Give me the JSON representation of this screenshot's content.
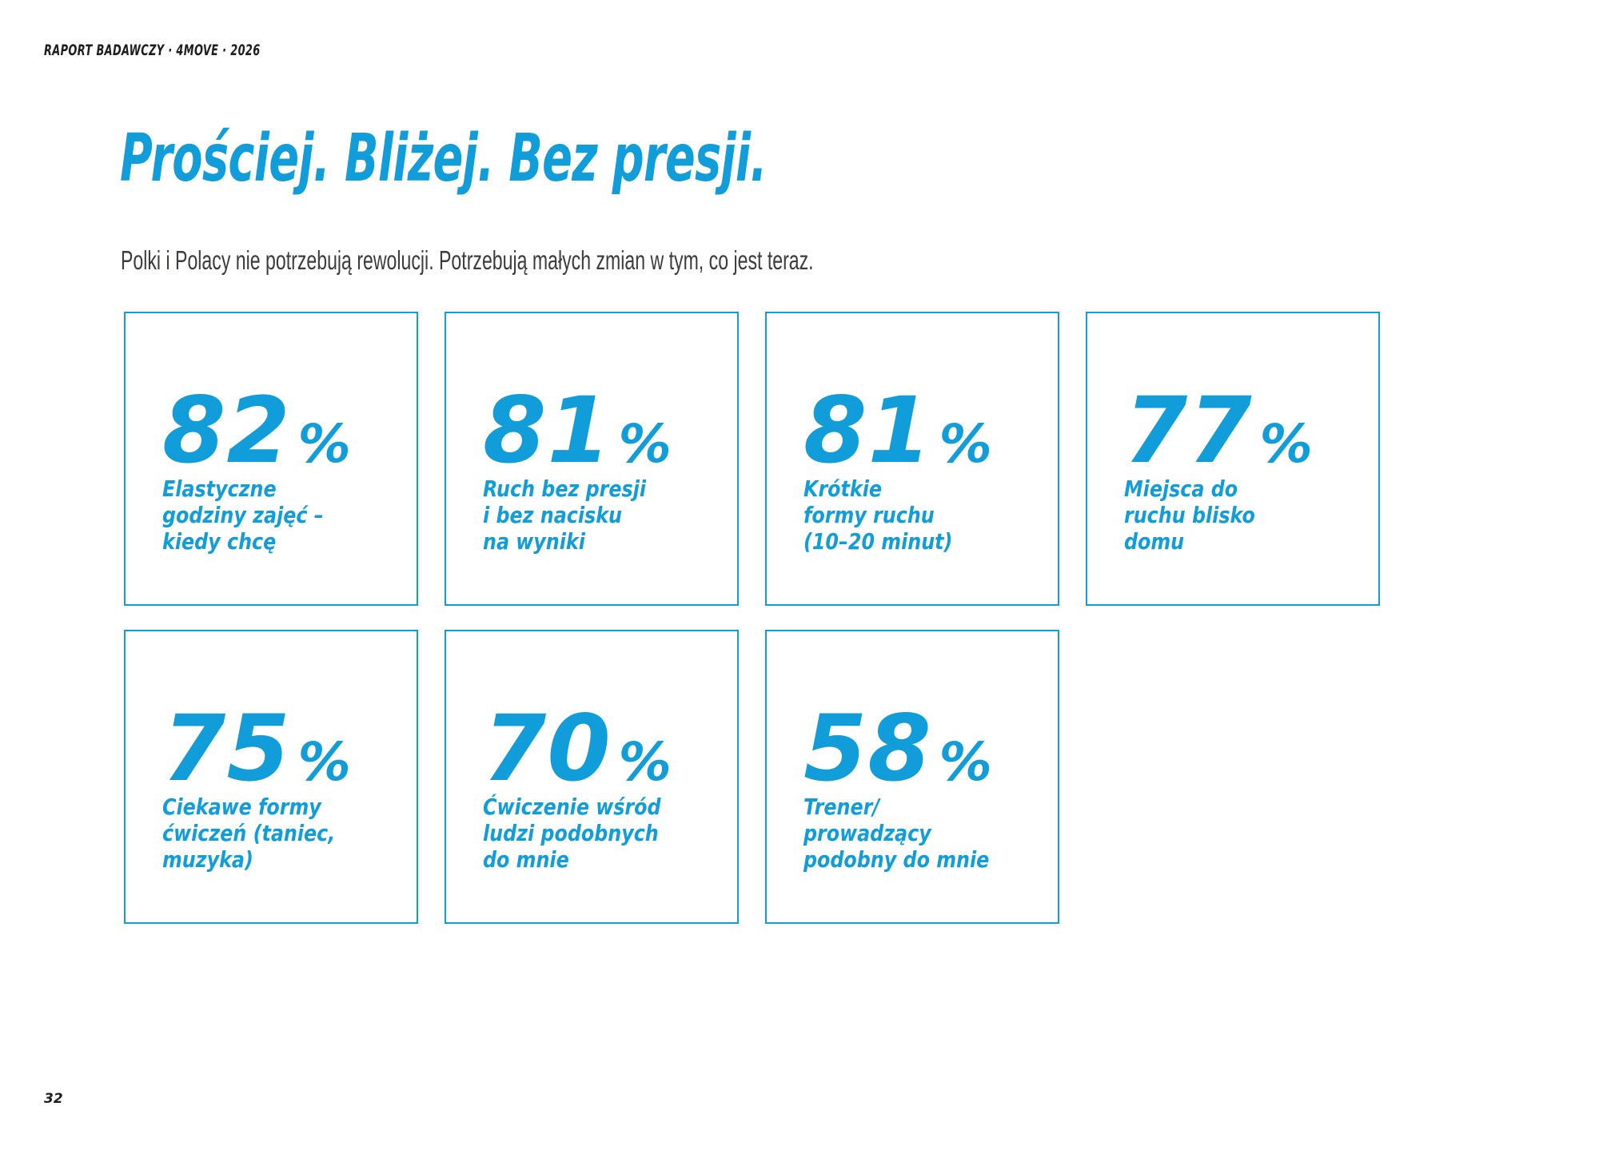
{
  "page": {
    "kicker": "RAPORT BADAWCZY · 4MOVE · 2026",
    "title": "Prościej. Bliżej. Bez presji.",
    "subtitle": "Polki i Polacy nie potrzebują rewolucji. Potrzebują małych zmian w tym, co jest teraz.",
    "page_number": "32"
  },
  "colors": {
    "accent_blue": "#109dd9",
    "heading_text": "#1d1d1b",
    "subtitle_text": "#3c3c3b",
    "card_border": "#109dd9",
    "background": "#ffffff"
  },
  "cards": [
    {
      "value": "82",
      "unit": "%",
      "label": "Elastyczne\ngodziny zajęć –\nkiedy chcę"
    },
    {
      "value": "81",
      "unit": "%",
      "label": "Ruch bez presji\ni bez nacisku\nna wyniki"
    },
    {
      "value": "81",
      "unit": "%",
      "label": "Krótkie\nformy ruchu\n(10–20 minut)"
    },
    {
      "value": "77",
      "unit": "%",
      "label": "Miejsca do\nruchu blisko\ndomu"
    },
    {
      "value": "75",
      "unit": "%",
      "label": "Ciekawe formy\nćwiczeń (taniec,\nmuzyka)"
    },
    {
      "value": "70",
      "unit": "%",
      "label": "Ćwiczenie wśród\nludzi podobnych\ndo mnie"
    },
    {
      "value": "58",
      "unit": "%",
      "label": "Trener/\nprowadzący\npodobny do mnie"
    }
  ]
}
